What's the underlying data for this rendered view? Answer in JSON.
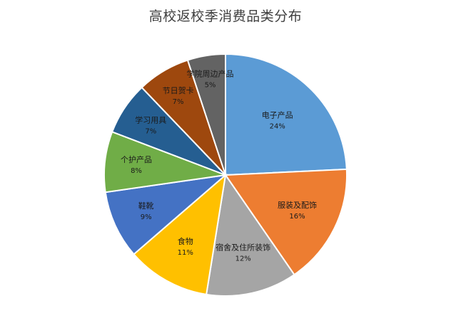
{
  "chart_data": {
    "type": "pie",
    "title": "高校返校季消费品类分布",
    "slices": [
      {
        "label": "电子产品",
        "value": 24,
        "value_label": "24%",
        "color": "#5b9bd5"
      },
      {
        "label": "服装及配饰",
        "value": 16,
        "value_label": "16%",
        "color": "#ed7d31"
      },
      {
        "label": "宿舍及住所装饰",
        "value": 12,
        "value_label": "12%",
        "color": "#a5a5a5"
      },
      {
        "label": "食物",
        "value": 11,
        "value_label": "11%",
        "color": "#ffc000"
      },
      {
        "label": "鞋靴",
        "value": 9,
        "value_label": "9%",
        "color": "#4472c4"
      },
      {
        "label": "个护产品",
        "value": 8,
        "value_label": "8%",
        "color": "#70ad47"
      },
      {
        "label": "学习用具",
        "value": 7,
        "value_label": "7%",
        "color": "#255e91"
      },
      {
        "label": "节日贺卡",
        "value": 7,
        "value_label": "7%",
        "color": "#9e480e"
      },
      {
        "label": "学院周边产品",
        "value": 5,
        "value_label": "5%",
        "color": "#636363"
      }
    ],
    "legend": "none"
  }
}
